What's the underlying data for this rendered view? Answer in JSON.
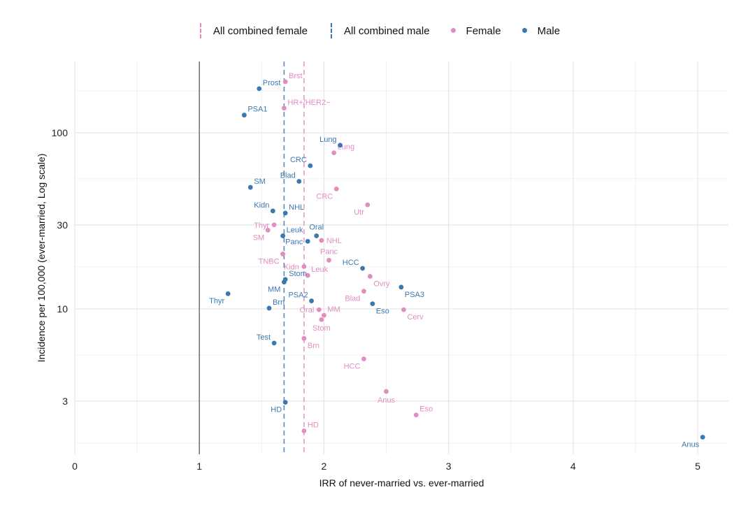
{
  "legend": {
    "combined_female": "All combined female",
    "combined_male": "All combined male",
    "female": "Female",
    "male": "Male"
  },
  "colors": {
    "female": "#e08ec0",
    "male": "#3b78b0"
  },
  "chart_data": {
    "type": "scatter",
    "title": "",
    "xlabel": "IRR of never-married vs. ever-married",
    "ylabel": "Incidence per 100,000 (ever-married, Log scale)",
    "xlim": [
      0,
      5.2
    ],
    "ylim": [
      1.6,
      260
    ],
    "yscale": "log",
    "xticks": [
      "0",
      "1",
      "2",
      "3",
      "4",
      "5"
    ],
    "yticks": [
      "3",
      "10",
      "30",
      "100"
    ],
    "reference_lines": [
      {
        "name": "All combined female",
        "x": 1.84,
        "series": "female"
      },
      {
        "name": "All combined male",
        "x": 1.68,
        "series": "male"
      },
      {
        "name": "null",
        "x": 1.0,
        "series": "ref"
      }
    ],
    "series": [
      {
        "name": "Female",
        "points": [
          {
            "label": "Brst",
            "x": 1.69,
            "y": 195,
            "pos": "ne"
          },
          {
            "label": "HR+/HER2−",
            "x": 1.68,
            "y": 138,
            "pos": "ne"
          },
          {
            "label": "Lung",
            "x": 2.08,
            "y": 77,
            "pos": "ne"
          },
          {
            "label": "CRC",
            "x": 2.1,
            "y": 48,
            "pos": "sw"
          },
          {
            "label": "Utr",
            "x": 2.35,
            "y": 39,
            "pos": "sw"
          },
          {
            "label": "Thyr",
            "x": 1.6,
            "y": 30,
            "pos": "w"
          },
          {
            "label": "SM",
            "x": 1.55,
            "y": 28,
            "pos": "sw"
          },
          {
            "label": "NHL",
            "x": 1.98,
            "y": 24.5,
            "pos": "e"
          },
          {
            "label": "TNBC",
            "x": 1.67,
            "y": 20.5,
            "pos": "sw"
          },
          {
            "label": "Panc",
            "x": 2.04,
            "y": 18.9,
            "pos": "n"
          },
          {
            "label": "Kidn",
            "x": 1.84,
            "y": 17.4,
            "pos": "w"
          },
          {
            "label": "Leuk",
            "x": 1.87,
            "y": 15.5,
            "pos": "ne"
          },
          {
            "label": "Ovry",
            "x": 2.37,
            "y": 15.3,
            "pos": "se"
          },
          {
            "label": "Blad",
            "x": 2.32,
            "y": 12.6,
            "pos": "sw"
          },
          {
            "label": "Cerv",
            "x": 2.64,
            "y": 9.9,
            "pos": "se"
          },
          {
            "label": "Oral",
            "x": 1.96,
            "y": 9.9,
            "pos": "w"
          },
          {
            "label": "MM",
            "x": 2.0,
            "y": 9.2,
            "pos": "ne"
          },
          {
            "label": "Stom",
            "x": 1.98,
            "y": 8.7,
            "pos": "s"
          },
          {
            "label": "Brn",
            "x": 1.84,
            "y": 6.8,
            "pos": "se"
          },
          {
            "label": "HCC",
            "x": 2.32,
            "y": 5.2,
            "pos": "sw"
          },
          {
            "label": "Anus",
            "x": 2.5,
            "y": 3.4,
            "pos": "s"
          },
          {
            "label": "Eso",
            "x": 2.74,
            "y": 2.5,
            "pos": "ne"
          },
          {
            "label": "HD",
            "x": 1.84,
            "y": 2.03,
            "pos": "ne"
          }
        ]
      },
      {
        "name": "Male",
        "points": [
          {
            "label": "Prost",
            "x": 1.48,
            "y": 178,
            "pos": "ne"
          },
          {
            "label": "PSA1",
            "x": 1.36,
            "y": 126,
            "pos": "ne"
          },
          {
            "label": "Lung",
            "x": 2.13,
            "y": 85,
            "pos": "nw"
          },
          {
            "label": "CRC",
            "x": 1.89,
            "y": 65,
            "pos": "nw"
          },
          {
            "label": "Blad",
            "x": 1.8,
            "y": 53,
            "pos": "nw"
          },
          {
            "label": "SM",
            "x": 1.41,
            "y": 49,
            "pos": "ne"
          },
          {
            "label": "Kidn",
            "x": 1.59,
            "y": 36,
            "pos": "nw"
          },
          {
            "label": "NHL",
            "x": 1.69,
            "y": 35,
            "pos": "ne"
          },
          {
            "label": "Leuk",
            "x": 1.67,
            "y": 26,
            "pos": "ne"
          },
          {
            "label": "Oral",
            "x": 1.94,
            "y": 26,
            "pos": "n"
          },
          {
            "label": "Panc",
            "x": 1.87,
            "y": 24.2,
            "pos": "w"
          },
          {
            "label": "HCC",
            "x": 2.31,
            "y": 17,
            "pos": "nw"
          },
          {
            "label": "Stom",
            "x": 1.69,
            "y": 14.7,
            "pos": "ne"
          },
          {
            "label": "MM",
            "x": 1.68,
            "y": 14.2,
            "pos": "sw"
          },
          {
            "label": "PSA3",
            "x": 2.62,
            "y": 13.3,
            "pos": "se"
          },
          {
            "label": "Thyr",
            "x": 1.23,
            "y": 12.2,
            "pos": "sw"
          },
          {
            "label": "PSA2",
            "x": 1.9,
            "y": 11.1,
            "pos": "nw"
          },
          {
            "label": "Eso",
            "x": 2.39,
            "y": 10.7,
            "pos": "se"
          },
          {
            "label": "Brn",
            "x": 1.56,
            "y": 10.1,
            "pos": "ne"
          },
          {
            "label": "Test",
            "x": 1.6,
            "y": 6.4,
            "pos": "nw"
          },
          {
            "label": "HD",
            "x": 1.69,
            "y": 2.95,
            "pos": "sw"
          },
          {
            "label": "Anus",
            "x": 5.04,
            "y": 1.87,
            "pos": "sw"
          }
        ]
      }
    ]
  }
}
